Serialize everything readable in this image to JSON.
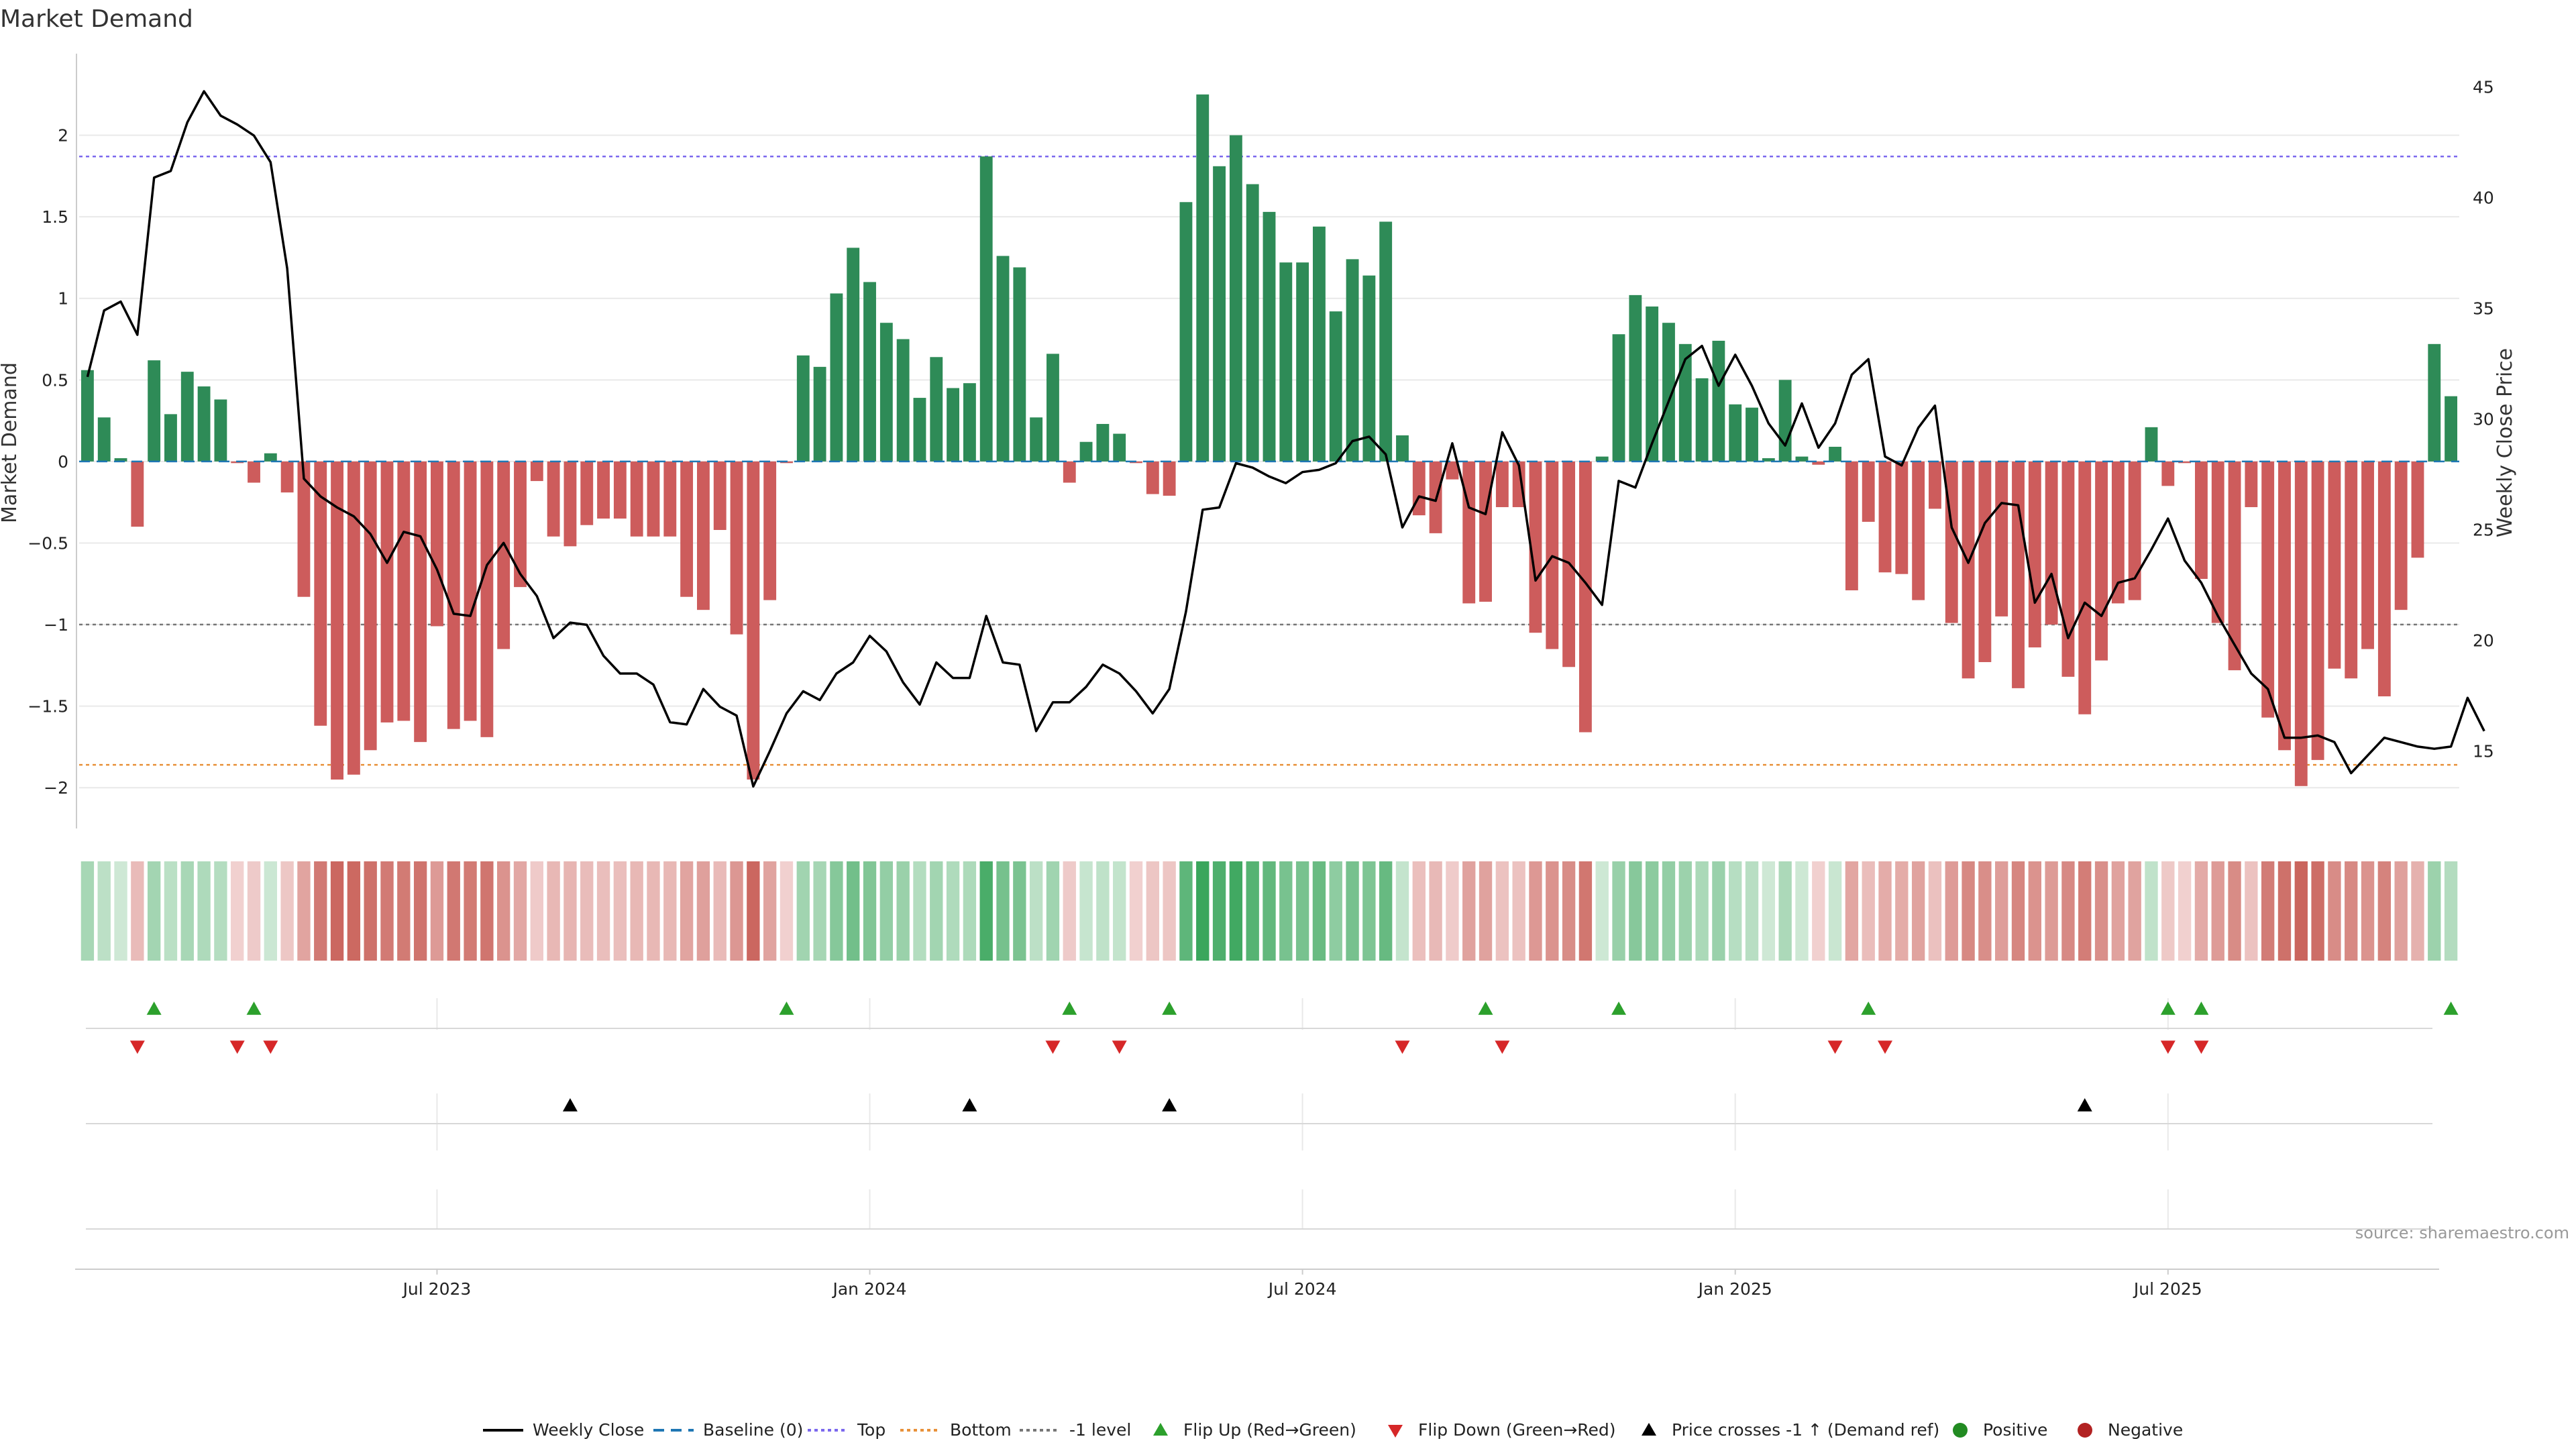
{
  "title": "Market Demand",
  "source": "source: sharemaestro.com",
  "colors": {
    "positive": "#2e8b57",
    "negative": "#cd5c5c",
    "price": "#000000",
    "baseline": "#1f77b4",
    "top": "#7b68ee",
    "bottom": "#e8913a",
    "minus_one": "#777777",
    "flip_up": "#2ca02c",
    "flip_down": "#d62728",
    "cross": "#000000",
    "pos_dot": "#228b22",
    "neg_dot": "#b22222",
    "grid": "#e9e9e9",
    "axis": "#cccccc"
  },
  "chart_data": {
    "type": "bar+line",
    "title": "Market Demand",
    "ylabel_left": "Market Demand",
    "ylabel_right": "Weekly Close Price",
    "ylim_left": [
      -2.25,
      2.5
    ],
    "ylim_right": [
      11.5,
      46.5
    ],
    "yticks_left": [
      2,
      1.5,
      1,
      0.5,
      0,
      -0.5,
      -1,
      -1.5,
      -2
    ],
    "ytick_labels_left": [
      "2",
      "1.5",
      "1",
      "0.5",
      "0",
      "−0.5",
      "−1",
      "−1.5",
      "−2"
    ],
    "yticks_right": [
      45,
      40,
      35,
      30,
      25,
      20,
      15
    ],
    "ytick_labels_right": [
      "45",
      "40",
      "35",
      "30",
      "25",
      "20",
      "15"
    ],
    "x_index_range": [
      -0.5,
      142.5
    ],
    "xticks_index": [
      21,
      47,
      73,
      99,
      125
    ],
    "xtick_labels": [
      "Jul 2023",
      "Jan 2024",
      "Jul 2024",
      "Jan 2025",
      "Jul 2025"
    ],
    "reference_levels": {
      "top": 1.87,
      "bottom": -1.86,
      "minus_one": -1.0,
      "baseline": 0
    },
    "demand": [
      0.56,
      0.27,
      0.02,
      -0.4,
      0.62,
      0.29,
      0.55,
      0.46,
      0.38,
      -0.01,
      -0.13,
      0.05,
      -0.19,
      -0.83,
      -1.62,
      -1.95,
      -1.92,
      -1.77,
      -1.6,
      -1.59,
      -1.72,
      -1.01,
      -1.64,
      -1.59,
      -1.69,
      -1.15,
      -0.77,
      -0.12,
      -0.46,
      -0.52,
      -0.39,
      -0.35,
      -0.35,
      -0.46,
      -0.46,
      -0.46,
      -0.83,
      -0.91,
      -0.42,
      -1.06,
      -1.95,
      -0.85,
      -0.01,
      0.65,
      0.58,
      1.03,
      1.31,
      1.1,
      0.85,
      0.75,
      0.39,
      0.64,
      0.45,
      0.48,
      1.87,
      1.26,
      1.19,
      0.27,
      0.66,
      -0.13,
      0.12,
      0.23,
      0.17,
      -0.01,
      -0.2,
      -0.21,
      1.59,
      2.25,
      1.81,
      2.0,
      1.7,
      1.53,
      1.22,
      1.22,
      1.44,
      0.92,
      1.24,
      1.14,
      1.47,
      0.16,
      -0.33,
      -0.44,
      -0.11,
      -0.87,
      -0.86,
      -0.28,
      -0.28,
      -1.05,
      -1.15,
      -1.26,
      -1.66,
      0.03,
      0.78,
      1.02,
      0.95,
      0.85,
      0.72,
      0.51,
      0.74,
      0.35,
      0.33,
      0.02,
      0.5,
      0.03,
      -0.02,
      0.09,
      -0.79,
      -0.37,
      -0.68,
      -0.69,
      -0.85,
      -0.29,
      -0.99,
      -1.33,
      -1.23,
      -0.95,
      -1.39,
      -1.14,
      -1.0,
      -1.32,
      -1.55,
      -1.22,
      -0.87,
      -0.85,
      0.21,
      -0.15,
      -0.01,
      -0.72,
      -0.99,
      -1.28,
      -0.28,
      -1.57,
      -1.77,
      -1.99,
      -1.83,
      -1.27,
      -1.33,
      -1.15,
      -1.44,
      -0.91,
      -0.59,
      0.72,
      0.4
    ],
    "weekly_close": [
      31.9,
      34.9,
      35.3,
      33.8,
      40.9,
      41.2,
      43.4,
      44.8,
      43.7,
      43.3,
      42.8,
      41.6,
      36.8,
      27.3,
      26.5,
      26.0,
      25.6,
      24.8,
      23.5,
      24.9,
      24.7,
      23.2,
      21.2,
      21.1,
      23.4,
      24.4,
      23.0,
      22.0,
      20.1,
      20.8,
      20.7,
      19.3,
      18.5,
      18.5,
      18.0,
      16.3,
      16.2,
      17.8,
      17.0,
      16.6,
      13.4,
      15.0,
      16.7,
      17.7,
      17.3,
      18.5,
      19.0,
      20.2,
      19.5,
      18.1,
      17.1,
      19.0,
      18.3,
      18.3,
      21.1,
      19.0,
      18.9,
      15.9,
      17.2,
      17.2,
      17.9,
      18.9,
      18.5,
      17.7,
      16.7,
      17.8,
      21.3,
      25.9,
      26.0,
      28.0,
      27.8,
      27.4,
      27.1,
      27.6,
      27.7,
      28.0,
      29.0,
      29.2,
      28.4,
      25.1,
      26.5,
      26.3,
      28.9,
      26.0,
      25.7,
      29.4,
      27.9,
      22.7,
      23.8,
      23.5,
      22.6,
      21.6,
      27.2,
      26.9,
      28.9,
      30.8,
      32.7,
      33.3,
      31.5,
      32.9,
      31.5,
      29.8,
      28.8,
      30.7,
      28.7,
      29.8,
      32.0,
      32.7,
      28.3,
      27.9,
      29.6,
      30.6,
      25.1,
      23.5,
      25.3,
      26.2,
      26.1,
      21.7,
      23.0,
      20.1,
      21.7,
      21.1,
      22.6,
      22.8,
      24.1,
      25.5,
      23.6,
      22.6,
      21.1,
      19.8,
      18.5,
      17.8,
      15.6,
      15.6,
      15.7,
      15.4,
      14.0,
      14.8,
      15.6,
      15.4,
      15.2,
      15.1,
      15.2,
      17.4,
      15.9
    ],
    "heat_strip": "color intensity encodes Market Demand per week",
    "flip_up_index": [
      4,
      10,
      42,
      59,
      65,
      84,
      92,
      107,
      125,
      127,
      142
    ],
    "flip_down_index": [
      3,
      9,
      11,
      58,
      62,
      79,
      85,
      105,
      108,
      125,
      127
    ],
    "price_cross_index": [
      29,
      53,
      65,
      120
    ],
    "legend": [
      "Weekly Close",
      "Baseline (0)",
      "Top",
      "Bottom",
      "-1 level",
      "Flip Up (Red→Green)",
      "Flip Down (Green→Red)",
      "Price crosses -1 ↑ (Demand ref)",
      "Positive",
      "Negative"
    ]
  }
}
